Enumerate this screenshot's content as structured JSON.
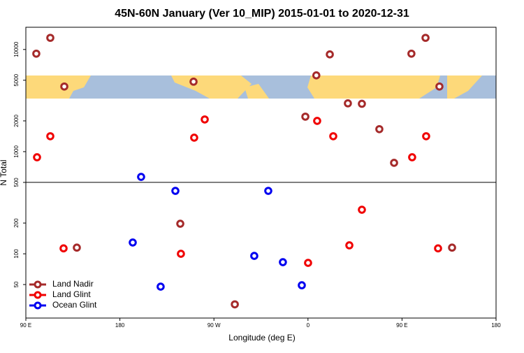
{
  "chart_data": {
    "type": "scatter",
    "title": "45N-60N January (Ver 10_MIP)   2015-01-01 to 2020-12-31",
    "x_label": "Longitude (deg E)",
    "y_label": "N Total",
    "log_y": true,
    "hline": 500,
    "legend": "bottom-left",
    "xlim": [
      90,
      540
    ],
    "xticks": [
      {
        "value": 90,
        "label": "90 E"
      },
      180,
      {
        "value": 270,
        "label": "90 W"
      },
      {
        "value": 360,
        "label": "0"
      },
      {
        "value": 450,
        "label": "90 E"
      },
      {
        "value": 540,
        "label": "180"
      }
    ],
    "ylim": [
      23.5,
      16500
    ],
    "yticks": [
      50,
      100,
      200,
      500,
      1000,
      2000,
      5000,
      10000
    ],
    "series": [
      {
        "name": "Land Nadir",
        "color": "#a52a2a",
        "x": [
          100,
          113.4,
          126.8,
          138.8,
          250.5,
          237.8,
          290,
          357.5,
          368,
          380.9,
          398.2,
          411.6,
          428.3,
          442.4,
          459,
          472.5,
          485.8,
          497.9
        ],
        "values": [
          9100,
          13000,
          4340,
          115,
          4840,
          197,
          32,
          2200,
          5580,
          8950,
          2970,
          2940,
          1660,
          777,
          9100,
          13000,
          4340,
          115
        ]
      },
      {
        "name": "Land Glint",
        "color": "#f00000",
        "x": [
          100.7,
          113.4,
          126.1,
          238.4,
          251.1,
          261.2,
          360.1,
          368.8,
          384.2,
          399.6,
          411.6,
          459.7,
          473.1,
          484.5
        ],
        "values": [
          881,
          1415,
          113,
          100,
          1370,
          2065,
          81.5,
          2000,
          1415,
          121,
          270,
          881,
          1415,
          113
        ]
      },
      {
        "name": "Ocean Glint",
        "color": "#0000f0",
        "x": [
          200.3,
          192.3,
          219,
          233.1,
          308.6,
          322,
          336,
          354.1
        ],
        "values": [
          566,
          129,
          47.7,
          413,
          95.4,
          413,
          82.8,
          49.2
        ]
      }
    ]
  }
}
